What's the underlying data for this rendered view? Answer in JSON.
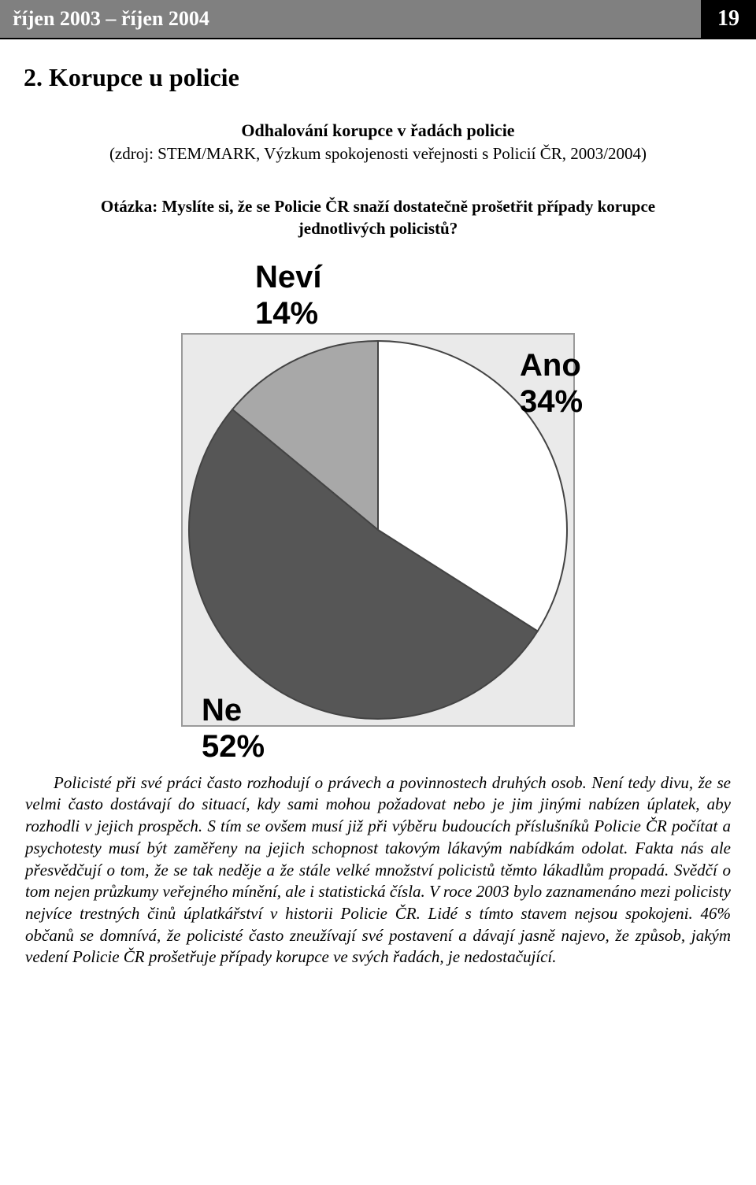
{
  "header": {
    "date_range": "říjen 2003 – říjen 2004",
    "page_number": "19"
  },
  "section_title": "2. Korupce u policie",
  "subtitle": "Odhalování korupce v řadách policie",
  "source": "(zdroj: STEM/MARK, Výzkum spokojenosti veřejnosti s Policií ČR, 2003/2004)",
  "question": "Otázka: Myslíte si, že se Policie ČR snaží dostatečně prošetřit případy korupce jednotlivých policistů?",
  "chart": {
    "type": "pie",
    "background_color": "#eaeaea",
    "border_color": "#9a9a9a",
    "slice_border_color": "#444444",
    "slices": [
      {
        "label": "Neví",
        "percent_label": "14%",
        "value": 14,
        "color": "#a8a8a8"
      },
      {
        "label": "Ano",
        "percent_label": "34%",
        "value": 34,
        "color": "#ffffff"
      },
      {
        "label": "Ne",
        "percent_label": "52%",
        "value": 52,
        "color": "#565656"
      }
    ],
    "label_fontsize": 40,
    "label_font": "Arial",
    "label_weight": "bold",
    "start_angle_deg": -140.4
  },
  "body_text": "Policisté při své práci často rozhodují o právech a povinnostech druhých osob. Není tedy divu, že se velmi často dostávají do situací, kdy sami mohou požadovat nebo je jim jinými nabízen úplatek, aby rozhodli v jejich prospěch. S tím se ovšem musí již při výběru budoucích příslušníků Policie ČR počítat a psychotesty musí být zaměřeny na jejich schopnost takovým lákavým nabídkám odolat. Fakta nás ale přesvědčují o tom, že se tak neděje a že stále velké množství policistů těmto lákadlům propadá. Svědčí o tom nejen průzkumy veřejného mínění, ale i statistická čísla. V roce 2003 bylo zaznamenáno mezi policisty nejvíce trestných činů úplatkářství v historii Policie ČR. Lidé s tímto stavem nejsou spokojeni. 46% občanů se domnívá, že policisté často zneužívají své postavení a dávají jasně najevo, že způsob, jakým vedení Policie ČR prošetřuje případy korupce ve svých řadách, je nedostačující."
}
